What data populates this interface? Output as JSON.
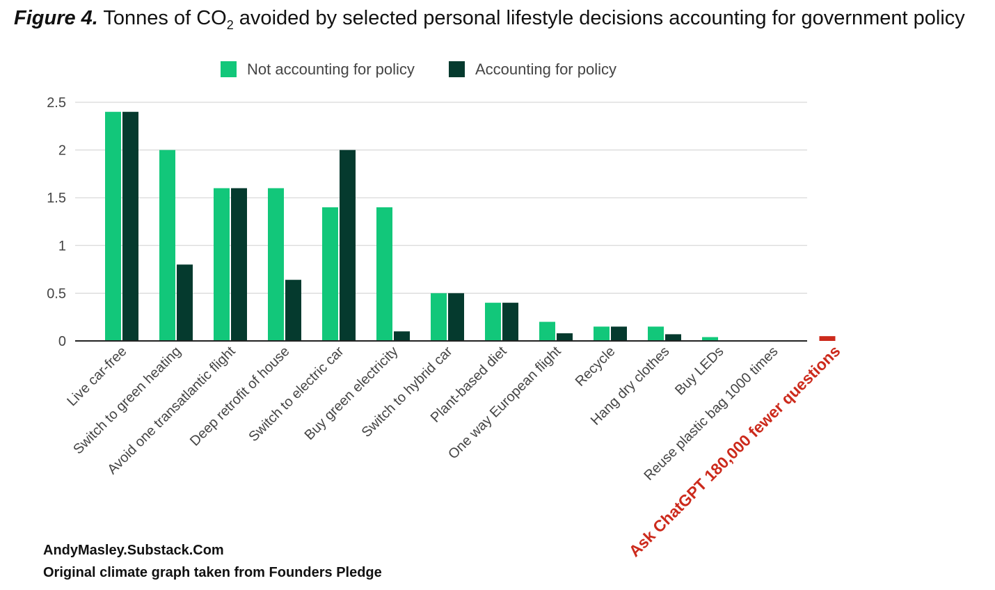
{
  "title": {
    "figure_label": "Figure 4.",
    "text_before": "Tonnes of CO",
    "subscript": "2",
    "text_after": " avoided by selected personal lifestyle decisions accounting for government policy"
  },
  "credits": {
    "line1": "AndyMasley.Substack.Com",
    "line2": "Original climate graph taken from Founders Pledge"
  },
  "chart_data": {
    "type": "bar",
    "categories": [
      "Live car-free",
      "Switch to green heating",
      "Avoid one transatlantic flight",
      "Deep retrofit of house",
      "Switch to electric car",
      "Buy green electricity",
      "Switch to hybrid car",
      "Plant-based diet",
      "One way European flight",
      "Recycle",
      "Hang dry clothes",
      "Buy LEDs",
      "Reuse plastic bag 1000 times",
      "Ask ChatGPT 180,000 fewer questions"
    ],
    "series": [
      {
        "name": "Not accounting for policy",
        "color": "#12c77a",
        "values": [
          2.4,
          2.0,
          1.6,
          1.6,
          1.4,
          1.4,
          0.5,
          0.4,
          0.2,
          0.15,
          0.15,
          0.04,
          0.002,
          null
        ]
      },
      {
        "name": "Accounting for policy",
        "color": "#053a2e",
        "values": [
          2.4,
          0.8,
          1.6,
          0.64,
          2.0,
          0.1,
          0.5,
          0.4,
          0.08,
          0.15,
          0.07,
          null,
          null,
          null
        ]
      }
    ],
    "highlight": {
      "category_index": 13,
      "value": 0.05,
      "color": "#cc2a1c",
      "label_color": "#cc2a1c"
    },
    "yticks": [
      0,
      0.5,
      1,
      1.5,
      2,
      2.5
    ],
    "ylim": [
      0,
      2.5
    ],
    "grid": true,
    "legend_position": "top-center"
  }
}
